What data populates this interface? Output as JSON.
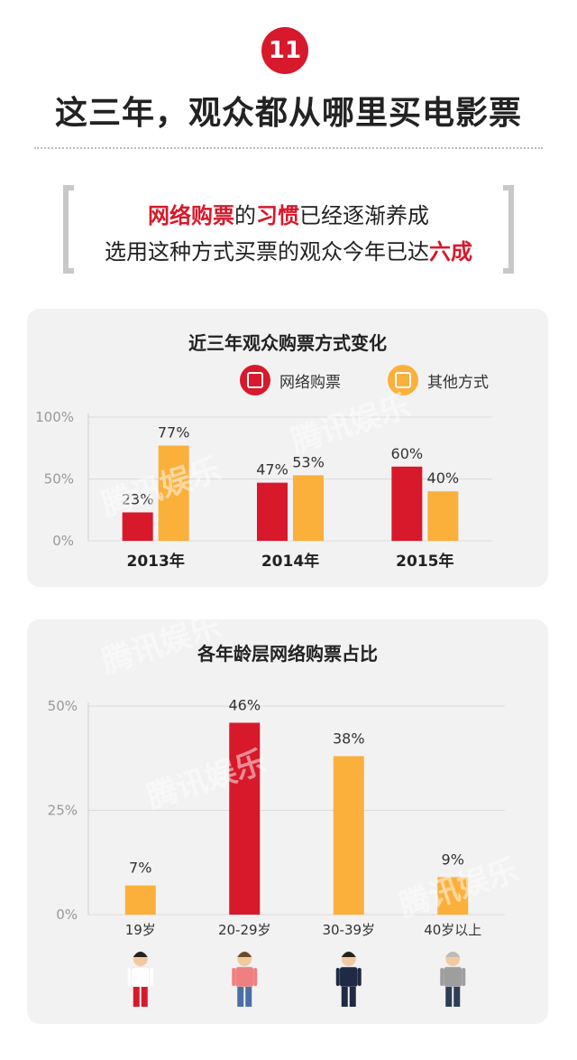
{
  "header": {
    "badge_number": "11",
    "title": "这三年，观众都从哪里买电影票"
  },
  "quote": {
    "line1_highlight1": "网络购票",
    "line1_text1": "的",
    "line1_highlight2": "习惯",
    "line1_text2": "已经逐渐养成",
    "line2_text": "选用这种方式买票的观众今年已达",
    "line2_highlight": "六成"
  },
  "colors": {
    "red": "#d7192b",
    "orange": "#fbb03b",
    "panel_bg": "#f2f2f2",
    "accent": "#d7192b"
  },
  "watermark": "腾讯娱乐",
  "chart_data": [
    {
      "type": "bar",
      "title": "近三年观众购票方式变化",
      "categories": [
        "2013年",
        "2014年",
        "2015年"
      ],
      "series": [
        {
          "name": "网络购票",
          "color": "#d7192b",
          "values": [
            23,
            47,
            60
          ],
          "labels": [
            "23%",
            "47%",
            "60%"
          ]
        },
        {
          "name": "其他方式",
          "color": "#fbb03b",
          "values": [
            77,
            53,
            40
          ],
          "labels": [
            "77%",
            "53%",
            "40%"
          ]
        }
      ],
      "yticks": [
        "0%",
        "50%",
        "100%"
      ],
      "ylim": [
        0,
        100
      ],
      "legend_icons": [
        "monitor-icon",
        "ticket-icon"
      ],
      "legend": "top-right",
      "grid": true
    },
    {
      "type": "bar",
      "title": "各年龄层网络购票占比",
      "categories": [
        "19岁",
        "20-29岁",
        "30-39岁",
        "40岁以上"
      ],
      "values": [
        7,
        46,
        38,
        9
      ],
      "labels": [
        "7%",
        "46%",
        "38%",
        "9%"
      ],
      "colors": [
        "#fbb03b",
        "#d7192b",
        "#fbb03b",
        "#fbb03b"
      ],
      "yticks": [
        "0%",
        "25%",
        "50%"
      ],
      "ylim": [
        0,
        50
      ],
      "grid": true,
      "figures": [
        "girl-figure-icon",
        "woman-figure-icon",
        "man-suit-figure-icon",
        "older-man-figure-icon"
      ]
    }
  ]
}
